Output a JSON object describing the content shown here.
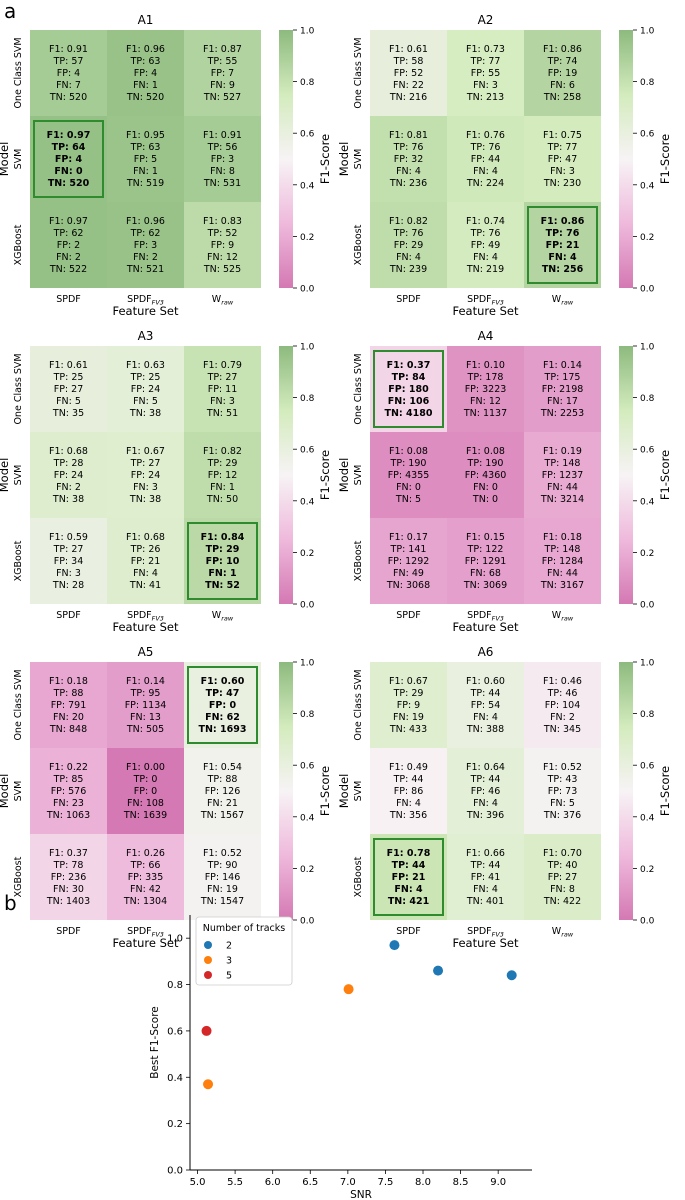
{
  "panel_labels": {
    "a": "a",
    "b": "b"
  },
  "axis_titles": {
    "x": "Feature Set",
    "y": "Model",
    "colorbar": "F1-Score"
  },
  "row_labels": [
    "One Class SVM",
    "SVM",
    "XGBoost"
  ],
  "col_labels": [
    {
      "main": "SPDF",
      "sub": ""
    },
    {
      "main": "SPDF",
      "sub": "FV3"
    },
    {
      "main": "W",
      "sub": "raw"
    }
  ],
  "colorbar_ticks": [
    "0.0",
    "0.2",
    "0.4",
    "0.6",
    "0.8",
    "1.0"
  ],
  "colors": {
    "low": "#c51b7d",
    "mid": "#f7f7f7",
    "high": "#4d9221",
    "highlight": "#2e8b2e"
  },
  "chart_data": [
    {
      "type": "heatmap",
      "title": "A1",
      "xlabel": "Feature Set",
      "ylabel": "Model",
      "rows": [
        "One Class SVM",
        "SVM",
        "XGBoost"
      ],
      "cols": [
        "SPDF",
        "SPDF_FV3",
        "W_raw"
      ],
      "zlim": [
        0,
        1
      ],
      "best": [
        1,
        0
      ],
      "cells": [
        [
          {
            "f1": "0.91",
            "tp": "57",
            "fp": "4",
            "fn": "7",
            "tn": "520"
          },
          {
            "f1": "0.96",
            "tp": "63",
            "fp": "4",
            "fn": "1",
            "tn": "520"
          },
          {
            "f1": "0.87",
            "tp": "55",
            "fp": "7",
            "fn": "9",
            "tn": "527"
          }
        ],
        [
          {
            "f1": "0.97",
            "tp": "64",
            "fp": "4",
            "fn": "0",
            "tn": "520"
          },
          {
            "f1": "0.95",
            "tp": "63",
            "fp": "5",
            "fn": "1",
            "tn": "519"
          },
          {
            "f1": "0.91",
            "tp": "56",
            "fp": "3",
            "fn": "8",
            "tn": "531"
          }
        ],
        [
          {
            "f1": "0.97",
            "tp": "62",
            "fp": "2",
            "fn": "2",
            "tn": "522"
          },
          {
            "f1": "0.96",
            "tp": "62",
            "fp": "3",
            "fn": "2",
            "tn": "521"
          },
          {
            "f1": "0.83",
            "tp": "52",
            "fp": "9",
            "fn": "12",
            "tn": "525"
          }
        ]
      ]
    },
    {
      "type": "heatmap",
      "title": "A2",
      "xlabel": "Feature Set",
      "ylabel": "Model",
      "rows": [
        "One Class SVM",
        "SVM",
        "XGBoost"
      ],
      "cols": [
        "SPDF",
        "SPDF_FV3",
        "W_raw"
      ],
      "zlim": [
        0,
        1
      ],
      "best": [
        2,
        2
      ],
      "cells": [
        [
          {
            "f1": "0.61",
            "tp": "58",
            "fp": "52",
            "fn": "22",
            "tn": "216"
          },
          {
            "f1": "0.73",
            "tp": "77",
            "fp": "55",
            "fn": "3",
            "tn": "213"
          },
          {
            "f1": "0.86",
            "tp": "74",
            "fp": "19",
            "fn": "6",
            "tn": "258"
          }
        ],
        [
          {
            "f1": "0.81",
            "tp": "76",
            "fp": "32",
            "fn": "4",
            "tn": "236"
          },
          {
            "f1": "0.76",
            "tp": "76",
            "fp": "44",
            "fn": "4",
            "tn": "224"
          },
          {
            "f1": "0.75",
            "tp": "77",
            "fp": "47",
            "fn": "3",
            "tn": "230"
          }
        ],
        [
          {
            "f1": "0.82",
            "tp": "76",
            "fp": "29",
            "fn": "4",
            "tn": "239"
          },
          {
            "f1": "0.74",
            "tp": "76",
            "fp": "49",
            "fn": "4",
            "tn": "219"
          },
          {
            "f1": "0.86",
            "tp": "76",
            "fp": "21",
            "fn": "4",
            "tn": "256"
          }
        ]
      ]
    },
    {
      "type": "heatmap",
      "title": "A3",
      "xlabel": "Feature Set",
      "ylabel": "Model",
      "rows": [
        "One Class SVM",
        "SVM",
        "XGBoost"
      ],
      "cols": [
        "SPDF",
        "SPDF_FV3",
        "W_raw"
      ],
      "zlim": [
        0,
        1
      ],
      "best": [
        2,
        2
      ],
      "cells": [
        [
          {
            "f1": "0.61",
            "tp": "25",
            "fp": "27",
            "fn": "5",
            "tn": "35"
          },
          {
            "f1": "0.63",
            "tp": "25",
            "fp": "24",
            "fn": "5",
            "tn": "38"
          },
          {
            "f1": "0.79",
            "tp": "27",
            "fp": "11",
            "fn": "3",
            "tn": "51"
          }
        ],
        [
          {
            "f1": "0.68",
            "tp": "28",
            "fp": "24",
            "fn": "2",
            "tn": "38"
          },
          {
            "f1": "0.67",
            "tp": "27",
            "fp": "24",
            "fn": "3",
            "tn": "38"
          },
          {
            "f1": "0.82",
            "tp": "29",
            "fp": "12",
            "fn": "1",
            "tn": "50"
          }
        ],
        [
          {
            "f1": "0.59",
            "tp": "27",
            "fp": "34",
            "fn": "3",
            "tn": "28"
          },
          {
            "f1": "0.68",
            "tp": "26",
            "fp": "21",
            "fn": "4",
            "tn": "41"
          },
          {
            "f1": "0.84",
            "tp": "29",
            "fp": "10",
            "fn": "1",
            "tn": "52"
          }
        ]
      ]
    },
    {
      "type": "heatmap",
      "title": "A4",
      "xlabel": "Feature Set",
      "ylabel": "Model",
      "rows": [
        "One Class SVM",
        "SVM",
        "XGBoost"
      ],
      "cols": [
        "SPDF",
        "SPDF_FV3",
        "W_raw"
      ],
      "zlim": [
        0,
        1
      ],
      "best": [
        0,
        0
      ],
      "cells": [
        [
          {
            "f1": "0.37",
            "tp": "84",
            "fp": "180",
            "fn": "106",
            "tn": "4180"
          },
          {
            "f1": "0.10",
            "tp": "178",
            "fp": "3223",
            "fn": "12",
            "tn": "1137"
          },
          {
            "f1": "0.14",
            "tp": "175",
            "fp": "2198",
            "fn": "17",
            "tn": "2253"
          }
        ],
        [
          {
            "f1": "0.08",
            "tp": "190",
            "fp": "4355",
            "fn": "0",
            "tn": "5"
          },
          {
            "f1": "0.08",
            "tp": "190",
            "fp": "4360",
            "fn": "0",
            "tn": "0"
          },
          {
            "f1": "0.19",
            "tp": "148",
            "fp": "1237",
            "fn": "44",
            "tn": "3214"
          }
        ],
        [
          {
            "f1": "0.17",
            "tp": "141",
            "fp": "1292",
            "fn": "49",
            "tn": "3068"
          },
          {
            "f1": "0.15",
            "tp": "122",
            "fp": "1291",
            "fn": "68",
            "tn": "3069"
          },
          {
            "f1": "0.18",
            "tp": "148",
            "fp": "1284",
            "fn": "44",
            "tn": "3167"
          }
        ]
      ]
    },
    {
      "type": "heatmap",
      "title": "A5",
      "xlabel": "Feature Set",
      "ylabel": "Model",
      "rows": [
        "One Class SVM",
        "SVM",
        "XGBoost"
      ],
      "cols": [
        "SPDF",
        "SPDF_FV3",
        "W_raw"
      ],
      "zlim": [
        0,
        1
      ],
      "best": [
        0,
        2
      ],
      "cells": [
        [
          {
            "f1": "0.18",
            "tp": "88",
            "fp": "791",
            "fn": "20",
            "tn": "848"
          },
          {
            "f1": "0.14",
            "tp": "95",
            "fp": "1134",
            "fn": "13",
            "tn": "505"
          },
          {
            "f1": "0.60",
            "tp": "47",
            "fp": "0",
            "fn": "62",
            "tn": "1693"
          }
        ],
        [
          {
            "f1": "0.22",
            "tp": "85",
            "fp": "576",
            "fn": "23",
            "tn": "1063"
          },
          {
            "f1": "0.00",
            "tp": "0",
            "fp": "0",
            "fn": "108",
            "tn": "1639"
          },
          {
            "f1": "0.54",
            "tp": "88",
            "fp": "126",
            "fn": "21",
            "tn": "1567"
          }
        ],
        [
          {
            "f1": "0.37",
            "tp": "78",
            "fp": "236",
            "fn": "30",
            "tn": "1403"
          },
          {
            "f1": "0.26",
            "tp": "66",
            "fp": "335",
            "fn": "42",
            "tn": "1304"
          },
          {
            "f1": "0.52",
            "tp": "90",
            "fp": "146",
            "fn": "19",
            "tn": "1547"
          }
        ]
      ]
    },
    {
      "type": "heatmap",
      "title": "A6",
      "xlabel": "Feature Set",
      "ylabel": "Model",
      "rows": [
        "One Class SVM",
        "SVM",
        "XGBoost"
      ],
      "cols": [
        "SPDF",
        "SPDF_FV3",
        "W_raw"
      ],
      "zlim": [
        0,
        1
      ],
      "best": [
        2,
        0
      ],
      "cells": [
        [
          {
            "f1": "0.67",
            "tp": "29",
            "fp": "9",
            "fn": "19",
            "tn": "433"
          },
          {
            "f1": "0.60",
            "tp": "44",
            "fp": "54",
            "fn": "4",
            "tn": "388"
          },
          {
            "f1": "0.46",
            "tp": "46",
            "fp": "104",
            "fn": "2",
            "tn": "345"
          }
        ],
        [
          {
            "f1": "0.49",
            "tp": "44",
            "fp": "86",
            "fn": "4",
            "tn": "356"
          },
          {
            "f1": "0.64",
            "tp": "44",
            "fp": "46",
            "fn": "4",
            "tn": "396"
          },
          {
            "f1": "0.52",
            "tp": "43",
            "fp": "73",
            "fn": "5",
            "tn": "376"
          }
        ],
        [
          {
            "f1": "0.78",
            "tp": "44",
            "fp": "21",
            "fn": "4",
            "tn": "421"
          },
          {
            "f1": "0.66",
            "tp": "44",
            "fp": "41",
            "fn": "4",
            "tn": "401"
          },
          {
            "f1": "0.70",
            "tp": "40",
            "fp": "27",
            "fn": "8",
            "tn": "422"
          }
        ]
      ]
    },
    {
      "type": "scatter",
      "title": "",
      "xlabel": "SNR",
      "ylabel": "Best F1-Score",
      "xlim": [
        4.9,
        9.45
      ],
      "ylim": [
        0.0,
        1.1
      ],
      "xticks": [
        "5.0",
        "5.5",
        "6.0",
        "6.5",
        "7.0",
        "7.5",
        "8.0",
        "8.5",
        "9.0"
      ],
      "yticks": [
        "0.0",
        "0.2",
        "0.4",
        "0.6",
        "0.8",
        "1.0"
      ],
      "legend_title": "Number of tracks",
      "series": [
        {
          "name": "2",
          "color": "#1f77b4",
          "points": [
            [
              7.62,
              0.97
            ],
            [
              8.2,
              0.86
            ],
            [
              9.18,
              0.84
            ]
          ]
        },
        {
          "name": "3",
          "color": "#ff7f0e",
          "points": [
            [
              7.01,
              0.78
            ],
            [
              5.14,
              0.37
            ]
          ]
        },
        {
          "name": "5",
          "color": "#d62728",
          "points": [
            [
              5.12,
              0.6
            ]
          ]
        }
      ]
    }
  ]
}
